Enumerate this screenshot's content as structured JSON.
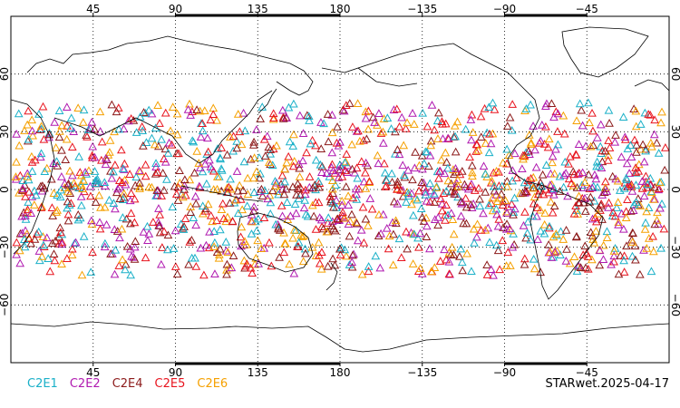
{
  "map": {
    "projection": "equirectangular, Pacific-centred (0°E to 360°E)",
    "lon_range": [
      0,
      360
    ],
    "lat_range": [
      -90,
      90
    ],
    "grid": "dotted, every 45° longitude and 30° latitude",
    "top_lon_labels": [
      "45",
      "90",
      "135",
      "180",
      "−135",
      "−90",
      "−45"
    ],
    "bottom_lon_labels": [
      "45",
      "90",
      "135",
      "180",
      "−135",
      "−90",
      "−45"
    ],
    "lat_labels": [
      "60",
      "30",
      "0",
      "−30",
      "−60"
    ],
    "marker": "open triangle",
    "point_band_lat": [
      -45,
      45
    ]
  },
  "legend": [
    {
      "label": "C2E1",
      "color": "#1ab0c8"
    },
    {
      "label": "C2E2",
      "color": "#b01ab0"
    },
    {
      "label": "C2E4",
      "color": "#8c1a1a"
    },
    {
      "label": "C2E5",
      "color": "#e8141e"
    },
    {
      "label": "C2E6",
      "color": "#f5a000"
    }
  ],
  "stamp": "STARwet.2025-04-17"
}
